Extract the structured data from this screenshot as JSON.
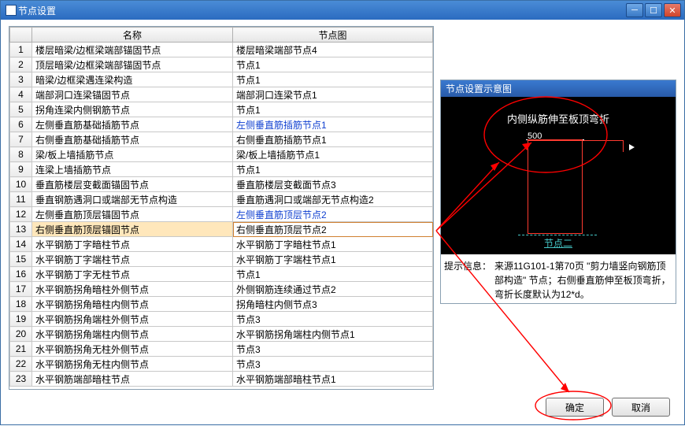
{
  "window": {
    "title": "节点设置"
  },
  "columns": {
    "rownum": "",
    "name": "名称",
    "nodeimg": "节点图"
  },
  "rows": [
    {
      "n": 1,
      "name": "楼层暗梁/边框梁端部锚固节点",
      "img": "楼层暗梁端部节点4",
      "link": false
    },
    {
      "n": 2,
      "name": "顶层暗梁/边框梁端部锚固节点",
      "img": "节点1",
      "link": false
    },
    {
      "n": 3,
      "name": "暗梁/边框梁遇连梁构造",
      "img": "节点1",
      "link": false
    },
    {
      "n": 4,
      "name": "端部洞口连梁锚固节点",
      "img": "端部洞口连梁节点1",
      "link": false
    },
    {
      "n": 5,
      "name": "拐角连梁内侧钢筋节点",
      "img": "节点1",
      "link": false
    },
    {
      "n": 6,
      "name": "左侧垂直筋基础插筋节点",
      "img": "左侧垂直筋插筋节点1",
      "link": true
    },
    {
      "n": 7,
      "name": "右侧垂直筋基础插筋节点",
      "img": "右侧垂直筋插筋节点1",
      "link": false
    },
    {
      "n": 8,
      "name": "梁/板上墙插筋节点",
      "img": "梁/板上墙插筋节点1",
      "link": false
    },
    {
      "n": 9,
      "name": "连梁上墙插筋节点",
      "img": "节点1",
      "link": false
    },
    {
      "n": 10,
      "name": "垂直筋楼层变截面锚固节点",
      "img": "垂直筋楼层变截面节点3",
      "link": false
    },
    {
      "n": 11,
      "name": "垂直钢筋遇洞口或端部无节点构造",
      "img": "垂直筋遇洞口或端部无节点构造2",
      "link": false
    },
    {
      "n": 12,
      "name": "左侧垂直筋顶层锚固节点",
      "img": "左侧垂直筋顶层节点2",
      "link": true
    },
    {
      "n": 13,
      "name": "右侧垂直筋顶层锚固节点",
      "img": "右侧垂直筋顶层节点2",
      "link": false,
      "selected": true
    },
    {
      "n": 14,
      "name": "水平钢筋丁字暗柱节点",
      "img": "水平钢筋丁字暗柱节点1",
      "link": false
    },
    {
      "n": 15,
      "name": "水平钢筋丁字端柱节点",
      "img": "水平钢筋丁字端柱节点1",
      "link": false
    },
    {
      "n": 16,
      "name": "水平钢筋丁字无柱节点",
      "img": "节点1",
      "link": false
    },
    {
      "n": 17,
      "name": "水平钢筋拐角暗柱外侧节点",
      "img": "外侧钢筋连续通过节点2",
      "link": false
    },
    {
      "n": 18,
      "name": "水平钢筋拐角暗柱内侧节点",
      "img": "拐角暗柱内侧节点3",
      "link": false
    },
    {
      "n": 19,
      "name": "水平钢筋拐角端柱外侧节点",
      "img": "节点3",
      "link": false
    },
    {
      "n": 20,
      "name": "水平钢筋拐角端柱内侧节点",
      "img": "水平钢筋拐角端柱内侧节点1",
      "link": false
    },
    {
      "n": 21,
      "name": "水平钢筋拐角无柱外侧节点",
      "img": "节点3",
      "link": false
    },
    {
      "n": 22,
      "name": "水平钢筋拐角无柱内侧节点",
      "img": "节点3",
      "link": false
    },
    {
      "n": 23,
      "name": "水平钢筋端部暗柱节点",
      "img": "水平钢筋端部暗柱节点1",
      "link": false
    }
  ],
  "preview": {
    "title": "节点设置示意图",
    "top_text": "内侧纵筋伸至板顶弯折",
    "dim_value": "500",
    "node_label": "节点二"
  },
  "hint": {
    "label": "提示信息：",
    "text": "来源11G101-1第70页 \"剪力墙竖向钢筋顶部构造\" 节点；右侧垂直筋伸至板顶弯折，弯折长度默认为12*d。"
  },
  "buttons": {
    "ok": "确定",
    "cancel": "取消"
  },
  "colors": {
    "titlebar": "#2b6bc0",
    "selected_row": "#ffe7bb",
    "link": "#1040d0",
    "annotation": "#ff0000",
    "preview_cyan": "#45c9c9"
  }
}
